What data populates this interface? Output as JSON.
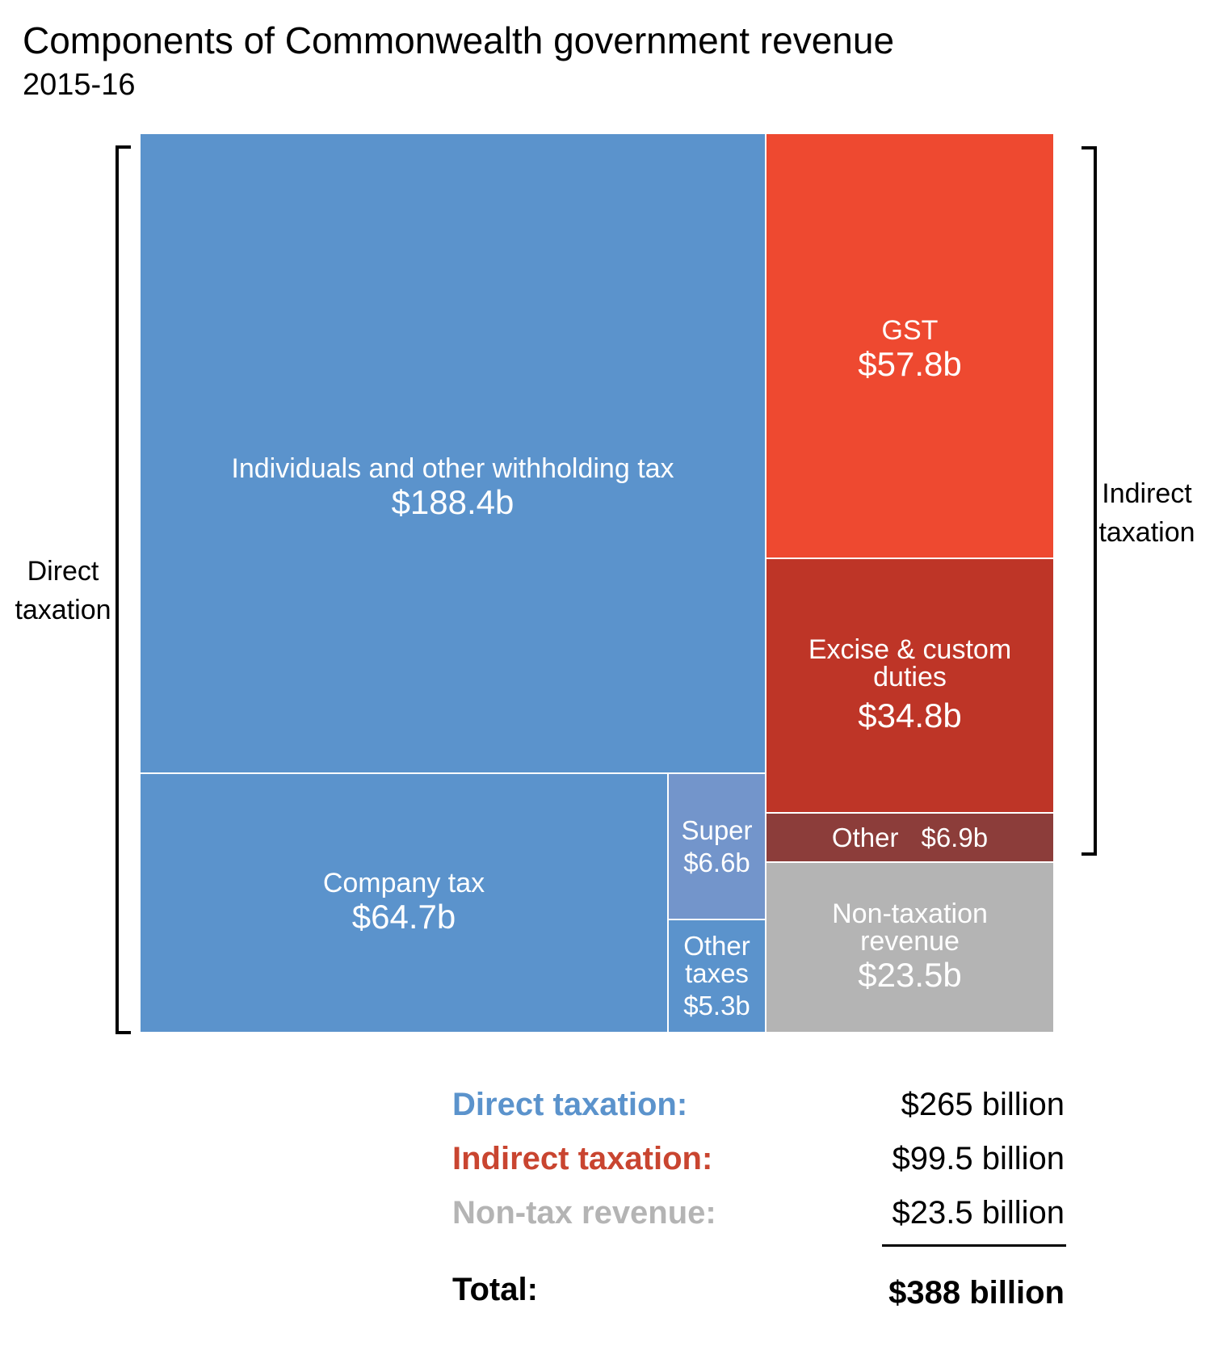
{
  "chart_data": {
    "type": "treemap",
    "title": "Components of Commonwealth government revenue",
    "subtitle": "2015-16",
    "units": "$ billion",
    "groups": [
      {
        "name": "Direct taxation",
        "color": "#5B93CC",
        "items": [
          {
            "label": "Individuals and other withholding tax",
            "value": 188.4,
            "value_label": "$188.4b",
            "color": "#5B93CC"
          },
          {
            "label": "Company tax",
            "value": 64.7,
            "value_label": "$64.7b",
            "color": "#5B93CC"
          },
          {
            "label": "Super",
            "value": 6.6,
            "value_label": "$6.6b",
            "color": "#7395CB"
          },
          {
            "label": "Other taxes",
            "value": 5.3,
            "value_label": "$5.3b",
            "color": "#5B93CC"
          }
        ]
      },
      {
        "name": "Indirect taxation",
        "color": "#EE4930",
        "items": [
          {
            "label": "GST",
            "value": 57.8,
            "value_label": "$57.8b",
            "color": "#EE4930"
          },
          {
            "label": "Excise & custom duties",
            "value": 34.8,
            "value_label": "$34.8b",
            "color": "#BE3527"
          },
          {
            "label": "Other",
            "value": 6.9,
            "value_label": "$6.9b",
            "color": "#8C3D3A"
          }
        ]
      },
      {
        "name": "Non-taxation revenue",
        "color": "#B4B4B4",
        "items": [
          {
            "label": "Non-taxation revenue",
            "value": 23.5,
            "value_label": "$23.5b",
            "color": "#B4B4B4"
          }
        ]
      }
    ],
    "bracket_labels": {
      "left": "Direct\ntaxation",
      "right": "Indirect\ntaxation"
    },
    "summary": [
      {
        "label": "Direct taxation:",
        "value": 265,
        "value_label": "$265 billion",
        "color": "#5B93CC"
      },
      {
        "label": "Indirect taxation:",
        "value": 99.5,
        "value_label": "$99.5 billion",
        "color": "#C94530"
      },
      {
        "label": "Non-tax revenue:",
        "value": 23.5,
        "value_label": "$23.5 billion",
        "color": "#B4B4B4"
      }
    ],
    "total": {
      "label": "Total:",
      "value": 388,
      "value_label": "$388 billion"
    }
  }
}
